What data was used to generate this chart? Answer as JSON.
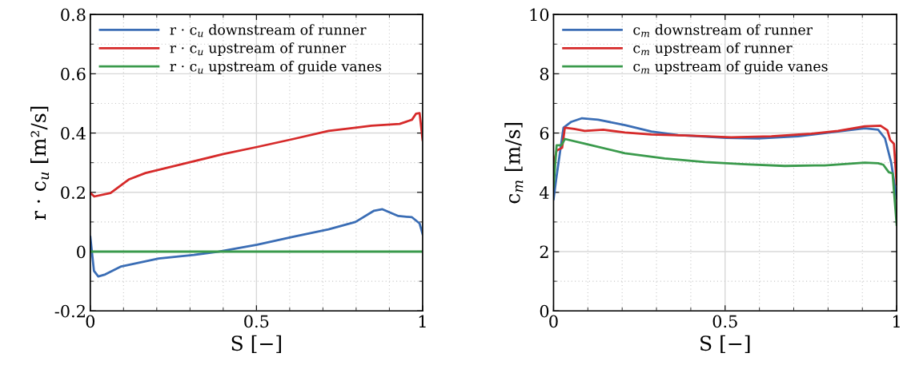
{
  "chart_data": [
    {
      "type": "line",
      "xlabel": "S [−]",
      "ylabel": "r · c$_{u}$ [m²/s]",
      "legend": "top left",
      "grid": true,
      "xlim": [
        0,
        1
      ],
      "ylim": [
        -0.2,
        0.8
      ],
      "xticks": [
        0,
        {
          "value": 0.1,
          "label": null
        },
        {
          "value": 0.2,
          "label": null
        },
        {
          "value": 0.3,
          "label": null
        },
        {
          "value": 0.4,
          "label": null
        },
        0.5,
        {
          "value": 0.6,
          "label": null
        },
        {
          "value": 0.7,
          "label": null
        },
        {
          "value": 0.8,
          "label": null
        },
        {
          "value": 0.9,
          "label": null
        },
        1
      ],
      "yticks": [
        -0.2,
        {
          "value": -0.1,
          "label": null
        },
        0,
        {
          "value": 0.1,
          "label": null
        },
        0.2,
        {
          "value": 0.3,
          "label": null
        },
        0.4,
        {
          "value": 0.5,
          "label": null
        },
        0.6,
        {
          "value": 0.7,
          "label": null
        },
        0.8
      ],
      "series": [
        {
          "name": "r · c$_{u}$ downstream of runner",
          "color": "#3a6db5",
          "x": [
            0,
            0.011,
            0.024,
            0.045,
            0.093,
            0.206,
            0.312,
            0.385,
            0.502,
            0.611,
            0.717,
            0.798,
            0.854,
            0.879,
            0.927,
            0.968,
            0.991,
            1
          ],
          "values": [
            0.05,
            -0.065,
            -0.084,
            -0.077,
            -0.05,
            -0.023,
            -0.011,
            0,
            0.023,
            0.05,
            0.075,
            0.1,
            0.138,
            0.143,
            0.12,
            0.116,
            0.095,
            0.059
          ]
        },
        {
          "name": "r · c$_{u}$ upstream of runner",
          "color": "#d62a2a",
          "x": [
            0,
            0.012,
            0.061,
            0.117,
            0.166,
            0.287,
            0.4,
            0.502,
            0.611,
            0.717,
            0.798,
            0.846,
            0.931,
            0.968,
            0.98,
            0.991,
            1
          ],
          "values": [
            0.198,
            0.186,
            0.198,
            0.244,
            0.265,
            0.298,
            0.329,
            0.353,
            0.38,
            0.407,
            0.418,
            0.425,
            0.431,
            0.445,
            0.465,
            0.467,
            0.377
          ]
        },
        {
          "name": "r · c$_{u}$ upstream of guide vanes",
          "color": "#3a9a4c",
          "x": [
            0,
            0.5,
            1
          ],
          "values": [
            0,
            0,
            0
          ]
        }
      ]
    },
    {
      "type": "line",
      "xlabel": "S [−]",
      "ylabel": "c$_{m}$ [m/s]",
      "legend": "top left",
      "grid": true,
      "xlim": [
        0,
        1
      ],
      "ylim": [
        0,
        10
      ],
      "xticks": [
        0,
        {
          "value": 0.1,
          "label": null
        },
        {
          "value": 0.2,
          "label": null
        },
        {
          "value": 0.3,
          "label": null
        },
        {
          "value": 0.4,
          "label": null
        },
        0.5,
        {
          "value": 0.6,
          "label": null
        },
        {
          "value": 0.7,
          "label": null
        },
        {
          "value": 0.8,
          "label": null
        },
        {
          "value": 0.9,
          "label": null
        },
        1
      ],
      "yticks": [
        0,
        {
          "value": 1,
          "label": null
        },
        2,
        {
          "value": 3,
          "label": null
        },
        4,
        {
          "value": 5,
          "label": null
        },
        6,
        {
          "value": 7,
          "label": null
        },
        8,
        {
          "value": 9,
          "label": null
        },
        10
      ],
      "series": [
        {
          "name": "c$_{m}$ downstream of runner",
          "color": "#3a6db5",
          "x": [
            0,
            0.009,
            0.029,
            0.052,
            0.083,
            0.13,
            0.208,
            0.285,
            0.363,
            0.503,
            0.596,
            0.713,
            0.829,
            0.907,
            0.946,
            0.966,
            0.984,
            1
          ],
          "values": [
            3.77,
            4.55,
            6.18,
            6.38,
            6.5,
            6.45,
            6.27,
            6.05,
            5.93,
            5.84,
            5.82,
            5.89,
            6.05,
            6.16,
            6.11,
            5.82,
            5.0,
            3.8
          ]
        },
        {
          "name": "c$_{m}$ upstream of runner",
          "color": "#d62a2a",
          "x": [
            0,
            0.009,
            0.025,
            0.033,
            0.06,
            0.091,
            0.145,
            0.208,
            0.285,
            0.402,
            0.518,
            0.635,
            0.751,
            0.829,
            0.907,
            0.953,
            0.973,
            0.981,
            0.992,
            1
          ],
          "values": [
            4.95,
            5.41,
            5.5,
            6.18,
            6.14,
            6.07,
            6.11,
            6.02,
            5.95,
            5.91,
            5.86,
            5.89,
            5.98,
            6.07,
            6.23,
            6.25,
            6.09,
            5.77,
            5.64,
            4.27
          ]
        },
        {
          "name": "c$_{m}$ upstream of guide vanes",
          "color": "#3a9a4c",
          "x": [
            0,
            0.009,
            0.023,
            0.033,
            0.091,
            0.208,
            0.324,
            0.441,
            0.557,
            0.674,
            0.79,
            0.907,
            0.946,
            0.961,
            0.977,
            0.988,
            1
          ],
          "values": [
            4.18,
            5.59,
            5.59,
            5.8,
            5.64,
            5.32,
            5.14,
            5.02,
            4.95,
            4.89,
            4.91,
            5.0,
            4.98,
            4.93,
            4.68,
            4.64,
            2.9
          ]
        }
      ]
    }
  ]
}
